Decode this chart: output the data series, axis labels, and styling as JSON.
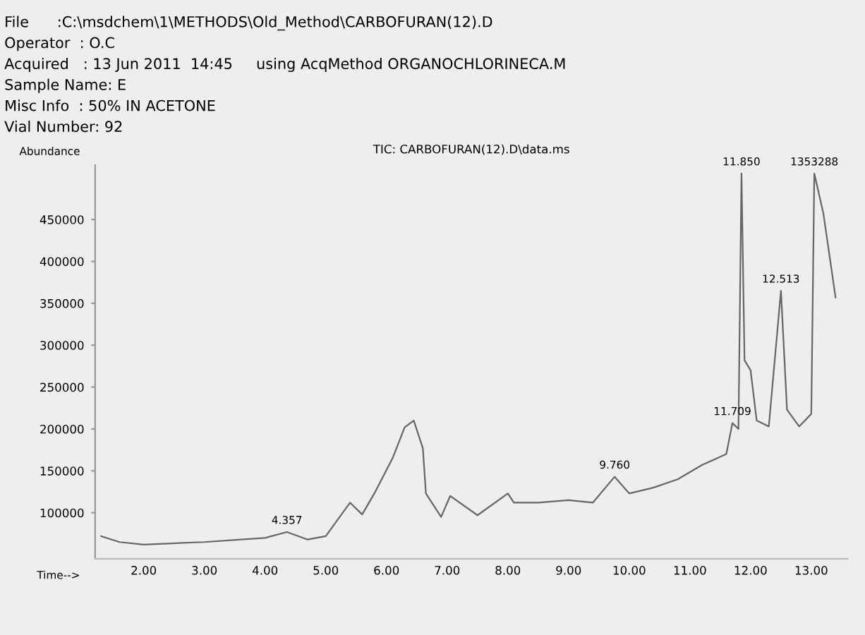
{
  "chart_data": {
    "type": "line",
    "title": "TIC: CARBOFURAN(12).D\\data.ms",
    "xlabel": "Time-->",
    "ylabel": "Abundance",
    "annotations": [
      "File      :C:\\msdchem\\1\\METHODS\\Old_Method\\CARBOFURAN(12).D",
      "Operator  : O.C",
      "Acquired   : 13 Jun 2011  14:45     using AcqMethod ORGANOCHLORINECA.M",
      "Sample Name: E",
      "Misc Info  : 50% IN ACETONE",
      "Vial Number: 92",
      {
        "text": "4.357",
        "x": 4.36,
        "y": 77000
      },
      {
        "text": "9.760",
        "x": 9.76,
        "y": 143000
      },
      {
        "text": "11.709",
        "x": 11.7,
        "y": 207000
      },
      {
        "text": "11.850",
        "x": 11.85,
        "y": 505000
      },
      {
        "text": "12.513",
        "x": 12.5,
        "y": 365000
      },
      {
        "text": "1353288",
        "x": 13.05,
        "y": 505000
      }
    ],
    "x": [
      1.3,
      1.6,
      2.0,
      3.0,
      4.0,
      4.36,
      4.7,
      5.0,
      5.4,
      5.6,
      5.8,
      6.1,
      6.3,
      6.45,
      6.6,
      6.65,
      6.9,
      7.05,
      7.5,
      8.0,
      8.1,
      8.5,
      9.0,
      9.4,
      9.76,
      10.0,
      10.4,
      10.8,
      11.2,
      11.6,
      11.7,
      11.8,
      11.85,
      11.9,
      12.0,
      12.1,
      12.3,
      12.5,
      12.6,
      12.8,
      13.0,
      13.05,
      13.2,
      13.3,
      13.4
    ],
    "series": [
      {
        "color": "#666666",
        "values": [
          72000,
          65000,
          62000,
          65000,
          70000,
          77000,
          68000,
          72000,
          112000,
          98000,
          123000,
          165000,
          202000,
          210000,
          177000,
          123000,
          95000,
          120000,
          97000,
          123000,
          112000,
          112000,
          115000,
          112000,
          143000,
          123000,
          130000,
          140000,
          157000,
          170000,
          207000,
          200000,
          505000,
          282000,
          270000,
          210000,
          203000,
          365000,
          223000,
          203000,
          218000,
          505000,
          457000,
          407000,
          357000
        ]
      }
    ],
    "xlim": [
      1.2,
      13.6
    ],
    "ylim": [
      45000,
      515000
    ],
    "xticks": [
      {
        "value": 2,
        "label": "2.00"
      },
      {
        "value": 3,
        "label": "3.00"
      },
      {
        "value": 4,
        "label": "4.00"
      },
      {
        "value": 5,
        "label": "5.00"
      },
      {
        "value": 6,
        "label": "6.00"
      },
      {
        "value": 7,
        "label": "7.00"
      },
      {
        "value": 8,
        "label": "8.00"
      },
      {
        "value": 9,
        "label": "9.00"
      },
      {
        "value": 10,
        "label": "10.00"
      },
      {
        "value": 11,
        "label": "11.00"
      },
      {
        "value": 12,
        "label": "12.00"
      },
      {
        "value": 13,
        "label": "13.00"
      }
    ],
    "yticks": [
      100000,
      150000,
      200000,
      250000,
      300000,
      350000,
      400000,
      450000
    ],
    "grid": false,
    "legend": false
  }
}
